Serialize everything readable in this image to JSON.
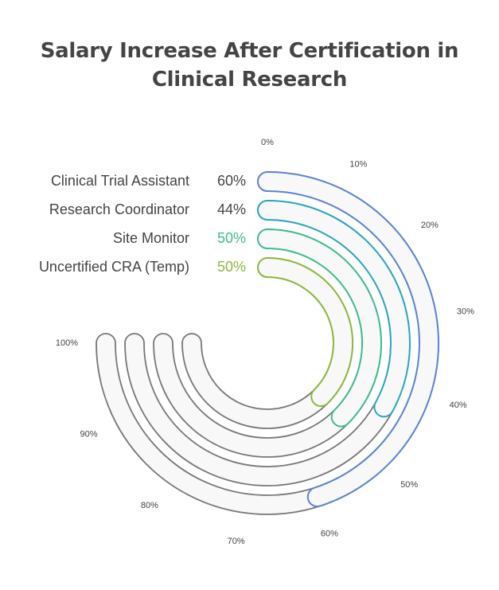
{
  "chart_data": {
    "type": "radial-bar",
    "title_lines": [
      "Salary Increase After Certification in",
      "Clinical Research"
    ],
    "axis_ticks": [
      "0%",
      "10%",
      "20%",
      "30%",
      "40%",
      "50%",
      "60%",
      "70%",
      "80%",
      "90%",
      "100%"
    ],
    "axis_range": [
      0,
      100
    ],
    "categories": [
      "Clinical Trial Assistant",
      "Research Coordinator",
      "Site Monitor",
      "Uncertified CRA (Temp)"
    ],
    "values": [
      60,
      44,
      50,
      50
    ],
    "value_labels": [
      "60%",
      "44%",
      "50%",
      "50%"
    ],
    "colors": [
      "#5b84d6",
      "#2aa6c4",
      "#3cbf8c",
      "#8db83c"
    ],
    "value_label_colors": [
      "#444444",
      "#444444",
      "#3cbf8c",
      "#8db83c"
    ],
    "track_color": "#f8f8f8",
    "track_stroke": "#777777"
  }
}
